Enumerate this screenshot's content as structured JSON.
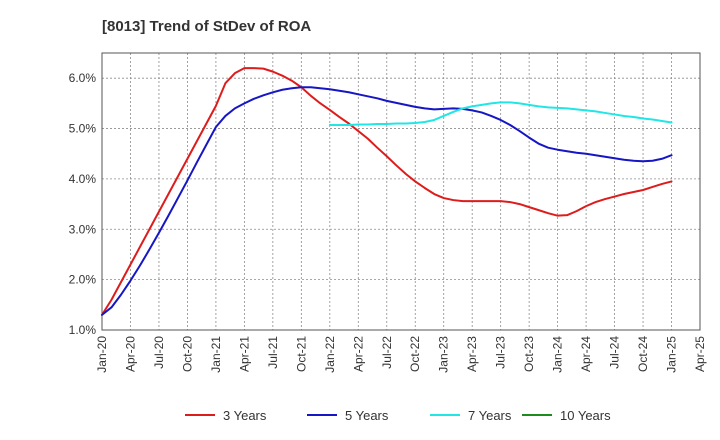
{
  "chart_data": {
    "type": "line",
    "title": "[8013]  Trend of StDev of ROA",
    "xlabel": "",
    "ylabel": "",
    "x_ticks": [
      "Jan-20",
      "Apr-20",
      "Jul-20",
      "Oct-20",
      "Jan-21",
      "Apr-21",
      "Jul-21",
      "Oct-21",
      "Jan-22",
      "Apr-22",
      "Jul-22",
      "Oct-22",
      "Jan-23",
      "Apr-23",
      "Jul-23",
      "Oct-23",
      "Jan-24",
      "Apr-24",
      "Jul-24",
      "Oct-24",
      "Jan-25",
      "Apr-25"
    ],
    "x_range": [
      "Jan-20",
      "Apr-25"
    ],
    "y_ticks": [
      "1.0%",
      "2.0%",
      "3.0%",
      "4.0%",
      "5.0%",
      "6.0%"
    ],
    "ylim": [
      1.0,
      6.5
    ],
    "grid": true,
    "legend_position": "bottom",
    "series": [
      {
        "name": "3 Years",
        "color": "#dd1c1c",
        "points": [
          [
            "Jan-20",
            1.3
          ],
          [
            "Feb-20",
            1.6
          ],
          [
            "Mar-20",
            1.95
          ],
          [
            "Apr-20",
            2.3
          ],
          [
            "May-20",
            2.65
          ],
          [
            "Jun-20",
            3.0
          ],
          [
            "Jul-20",
            3.35
          ],
          [
            "Aug-20",
            3.7
          ],
          [
            "Sep-20",
            4.05
          ],
          [
            "Oct-20",
            4.4
          ],
          [
            "Nov-20",
            4.75
          ],
          [
            "Dec-20",
            5.1
          ],
          [
            "Jan-21",
            5.45
          ],
          [
            "Feb-21",
            5.9
          ],
          [
            "Mar-21",
            6.1
          ],
          [
            "Apr-21",
            6.2
          ],
          [
            "May-21",
            6.2
          ],
          [
            "Jun-21",
            6.19
          ],
          [
            "Jul-21",
            6.13
          ],
          [
            "Aug-21",
            6.05
          ],
          [
            "Sep-21",
            5.95
          ],
          [
            "Oct-21",
            5.82
          ],
          [
            "Nov-21",
            5.65
          ],
          [
            "Dec-21",
            5.5
          ],
          [
            "Jan-22",
            5.37
          ],
          [
            "Feb-22",
            5.23
          ],
          [
            "Mar-22",
            5.1
          ],
          [
            "Apr-22",
            4.95
          ],
          [
            "May-22",
            4.8
          ],
          [
            "Jun-22",
            4.62
          ],
          [
            "Jul-22",
            4.45
          ],
          [
            "Aug-22",
            4.27
          ],
          [
            "Sep-22",
            4.1
          ],
          [
            "Oct-22",
            3.95
          ],
          [
            "Nov-22",
            3.82
          ],
          [
            "Dec-22",
            3.7
          ],
          [
            "Jan-23",
            3.62
          ],
          [
            "Feb-23",
            3.58
          ],
          [
            "Mar-23",
            3.56
          ],
          [
            "Apr-23",
            3.56
          ],
          [
            "May-23",
            3.56
          ],
          [
            "Jun-23",
            3.56
          ],
          [
            "Jul-23",
            3.56
          ],
          [
            "Aug-23",
            3.54
          ],
          [
            "Sep-23",
            3.5
          ],
          [
            "Oct-23",
            3.44
          ],
          [
            "Nov-23",
            3.38
          ],
          [
            "Dec-23",
            3.32
          ],
          [
            "Jan-24",
            3.27
          ],
          [
            "Feb-24",
            3.28
          ],
          [
            "Mar-24",
            3.36
          ],
          [
            "Apr-24",
            3.46
          ],
          [
            "May-24",
            3.54
          ],
          [
            "Jun-24",
            3.6
          ],
          [
            "Jul-24",
            3.65
          ],
          [
            "Aug-24",
            3.7
          ],
          [
            "Sep-24",
            3.74
          ],
          [
            "Oct-24",
            3.78
          ],
          [
            "Nov-24",
            3.84
          ],
          [
            "Dec-24",
            3.9
          ],
          [
            "Jan-25",
            3.95
          ]
        ]
      },
      {
        "name": "5 Years",
        "color": "#1616c4",
        "points": [
          [
            "Jan-20",
            1.3
          ],
          [
            "Feb-20",
            1.45
          ],
          [
            "Mar-20",
            1.7
          ],
          [
            "Apr-20",
            1.98
          ],
          [
            "May-20",
            2.28
          ],
          [
            "Jun-20",
            2.6
          ],
          [
            "Jul-20",
            2.93
          ],
          [
            "Aug-20",
            3.27
          ],
          [
            "Sep-20",
            3.62
          ],
          [
            "Oct-20",
            3.97
          ],
          [
            "Nov-20",
            4.33
          ],
          [
            "Dec-20",
            4.68
          ],
          [
            "Jan-21",
            5.03
          ],
          [
            "Feb-21",
            5.25
          ],
          [
            "Mar-21",
            5.4
          ],
          [
            "Apr-21",
            5.5
          ],
          [
            "May-21",
            5.59
          ],
          [
            "Jun-21",
            5.66
          ],
          [
            "Jul-21",
            5.72
          ],
          [
            "Aug-21",
            5.77
          ],
          [
            "Sep-21",
            5.8
          ],
          [
            "Oct-21",
            5.82
          ],
          [
            "Nov-21",
            5.82
          ],
          [
            "Dec-21",
            5.8
          ],
          [
            "Jan-22",
            5.78
          ],
          [
            "Feb-22",
            5.75
          ],
          [
            "Mar-22",
            5.72
          ],
          [
            "Apr-22",
            5.68
          ],
          [
            "May-22",
            5.64
          ],
          [
            "Jun-22",
            5.6
          ],
          [
            "Jul-22",
            5.55
          ],
          [
            "Aug-22",
            5.51
          ],
          [
            "Sep-22",
            5.47
          ],
          [
            "Oct-22",
            5.43
          ],
          [
            "Nov-22",
            5.4
          ],
          [
            "Dec-22",
            5.38
          ],
          [
            "Jan-23",
            5.39
          ],
          [
            "Feb-23",
            5.4
          ],
          [
            "Mar-23",
            5.39
          ],
          [
            "Apr-23",
            5.36
          ],
          [
            "May-23",
            5.32
          ],
          [
            "Jun-23",
            5.25
          ],
          [
            "Jul-23",
            5.17
          ],
          [
            "Aug-23",
            5.07
          ],
          [
            "Sep-23",
            4.95
          ],
          [
            "Oct-23",
            4.82
          ],
          [
            "Nov-23",
            4.7
          ],
          [
            "Dec-23",
            4.62
          ],
          [
            "Jan-24",
            4.58
          ],
          [
            "Feb-24",
            4.55
          ],
          [
            "Mar-24",
            4.52
          ],
          [
            "Apr-24",
            4.5
          ],
          [
            "May-24",
            4.47
          ],
          [
            "Jun-24",
            4.44
          ],
          [
            "Jul-24",
            4.41
          ],
          [
            "Aug-24",
            4.38
          ],
          [
            "Sep-24",
            4.36
          ],
          [
            "Oct-24",
            4.35
          ],
          [
            "Nov-24",
            4.36
          ],
          [
            "Dec-24",
            4.4
          ],
          [
            "Jan-25",
            4.47
          ]
        ]
      },
      {
        "name": "7 Years",
        "color": "#22e6e6",
        "points": [
          [
            "Jan-22",
            5.07
          ],
          [
            "Feb-22",
            5.07
          ],
          [
            "Mar-22",
            5.07
          ],
          [
            "Apr-22",
            5.08
          ],
          [
            "May-22",
            5.08
          ],
          [
            "Jun-22",
            5.09
          ],
          [
            "Jul-22",
            5.09
          ],
          [
            "Aug-22",
            5.1
          ],
          [
            "Sep-22",
            5.1
          ],
          [
            "Oct-22",
            5.11
          ],
          [
            "Nov-22",
            5.13
          ],
          [
            "Dec-22",
            5.17
          ],
          [
            "Jan-23",
            5.25
          ],
          [
            "Feb-23",
            5.33
          ],
          [
            "Mar-23",
            5.4
          ],
          [
            "Apr-23",
            5.44
          ],
          [
            "May-23",
            5.47
          ],
          [
            "Jun-23",
            5.5
          ],
          [
            "Jul-23",
            5.52
          ],
          [
            "Aug-23",
            5.52
          ],
          [
            "Sep-23",
            5.5
          ],
          [
            "Oct-23",
            5.47
          ],
          [
            "Nov-23",
            5.44
          ],
          [
            "Dec-23",
            5.42
          ],
          [
            "Jan-24",
            5.41
          ],
          [
            "Feb-24",
            5.4
          ],
          [
            "Mar-24",
            5.38
          ],
          [
            "Apr-24",
            5.36
          ],
          [
            "May-24",
            5.34
          ],
          [
            "Jun-24",
            5.31
          ],
          [
            "Jul-24",
            5.28
          ],
          [
            "Aug-24",
            5.25
          ],
          [
            "Sep-24",
            5.23
          ],
          [
            "Oct-24",
            5.2
          ],
          [
            "Nov-24",
            5.18
          ],
          [
            "Dec-24",
            5.15
          ],
          [
            "Jan-25",
            5.12
          ]
        ]
      },
      {
        "name": "10 Years",
        "color": "#1c8c1c",
        "points": []
      }
    ]
  }
}
